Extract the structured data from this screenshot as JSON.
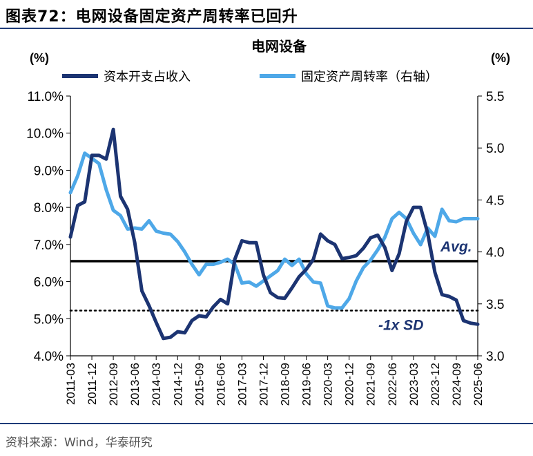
{
  "figure": {
    "label": "图表72：",
    "heading": "电网设备固定资产周转率已回升",
    "source": "资料来源：Wind，华泰研究"
  },
  "chart_data": {
    "type": "line",
    "title": "电网设备",
    "left_unit": "(%)",
    "right_unit": "(%)",
    "left_axis": {
      "min": 4.0,
      "max": 11.0,
      "step": 1.0,
      "ticks": [
        "4.0%",
        "5.0%",
        "6.0%",
        "7.0%",
        "8.0%",
        "9.0%",
        "10.0%",
        "11.0%"
      ]
    },
    "right_axis": {
      "min": 3.0,
      "max": 5.5,
      "step": 0.5,
      "ticks": [
        "3.0",
        "3.5",
        "4.0",
        "4.5",
        "5.0",
        "5.5"
      ]
    },
    "x_ticks": [
      "2011-03",
      "2011-12",
      "2012-09",
      "2013-06",
      "2014-03",
      "2014-12",
      "2015-09",
      "2016-06",
      "2017-03",
      "2017-12",
      "2018-09",
      "2019-06",
      "2020-03",
      "2020-12",
      "2021-09",
      "2022-06",
      "2023-03",
      "2023-12",
      "2024-09",
      "2025-06"
    ],
    "series": [
      {
        "name": "资本开支占收入",
        "axis": "left",
        "color": "#1c3472",
        "values": [
          7.2,
          8.05,
          8.15,
          9.4,
          9.4,
          9.3,
          10.1,
          8.3,
          7.95,
          7.05,
          5.75,
          5.35,
          4.9,
          4.47,
          4.5,
          4.65,
          4.62,
          4.95,
          5.08,
          5.05,
          5.32,
          5.52,
          5.4,
          6.6,
          7.1,
          7.05,
          7.05,
          6.18,
          5.7,
          5.57,
          5.55,
          5.83,
          6.13,
          6.33,
          6.6,
          7.28,
          7.1,
          7.0,
          6.62,
          6.65,
          6.7,
          6.9,
          7.18,
          7.25,
          6.92,
          6.3,
          6.75,
          7.62,
          8.0,
          8.0,
          7.3,
          6.25,
          5.65,
          5.6,
          5.5,
          4.95,
          4.88,
          4.85
        ]
      },
      {
        "name": "固定资产周转率（右轴）",
        "axis": "right",
        "color": "#4ea8e8",
        "values": [
          4.57,
          4.73,
          4.95,
          4.9,
          4.85,
          4.6,
          4.4,
          4.35,
          4.22,
          4.23,
          4.22,
          4.3,
          4.2,
          4.18,
          4.17,
          4.1,
          4.0,
          3.88,
          3.78,
          3.88,
          3.88,
          3.9,
          3.93,
          3.88,
          3.7,
          3.71,
          3.67,
          3.72,
          3.77,
          3.82,
          3.93,
          3.87,
          3.93,
          3.79,
          3.71,
          3.7,
          3.48,
          3.46,
          3.46,
          3.55,
          3.72,
          3.85,
          3.92,
          4.02,
          4.14,
          4.32,
          4.38,
          4.32,
          4.18,
          4.07,
          4.23,
          4.15,
          4.41,
          4.3,
          4.29,
          4.32,
          4.32,
          4.32
        ]
      }
    ],
    "reference_lines": [
      {
        "label": "Avg.",
        "axis": "left",
        "value": 6.55,
        "style": "solid"
      },
      {
        "label": "-1x SD",
        "axis": "left",
        "value": 5.22,
        "style": "dotted"
      }
    ]
  }
}
